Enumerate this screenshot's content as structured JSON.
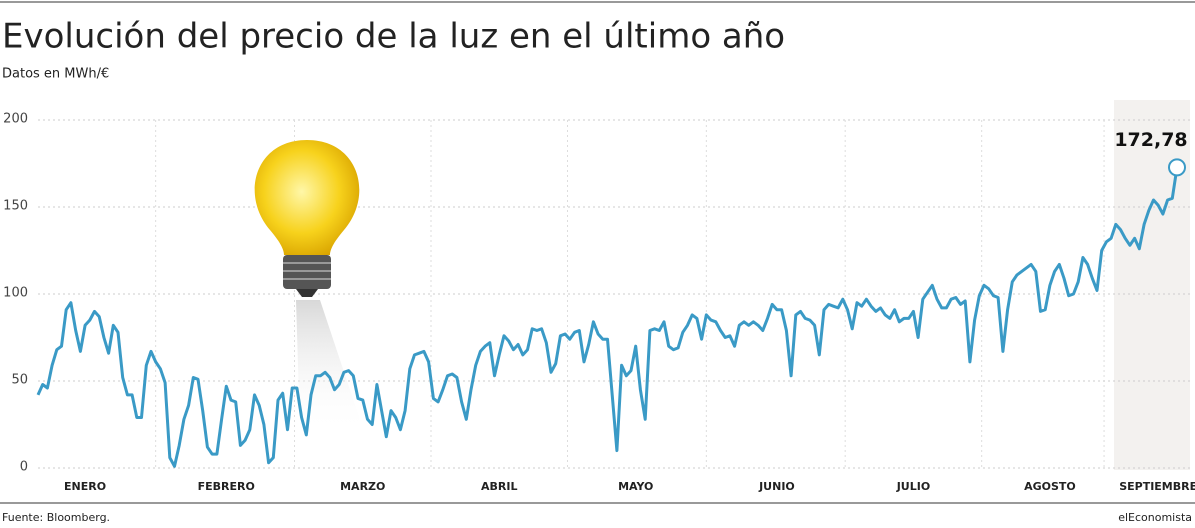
{
  "chart_data": {
    "type": "line",
    "title": "Evolución del precio de la luz en el último año",
    "subtitle": "Datos en MWh/€",
    "source": "Fuente: Bloomberg.",
    "brand": "elEconomista",
    "categories": [
      null,
      null,
      null,
      null,
      null,
      null,
      null,
      null,
      null,
      null,
      "ENERO",
      null,
      null,
      null,
      null,
      null,
      null,
      null,
      null,
      null,
      null,
      null,
      null,
      null,
      null,
      null,
      null,
      null,
      null,
      null,
      null,
      null,
      null,
      null,
      null,
      null,
      null,
      null,
      null,
      null,
      "FEBRERO",
      null,
      null,
      null,
      null,
      null,
      null,
      null,
      null,
      null,
      null,
      null,
      null,
      null,
      null,
      null,
      null,
      null,
      null,
      null,
      null,
      null,
      null,
      null,
      null,
      null,
      null,
      null,
      null,
      "MARZO",
      null,
      null,
      null,
      null,
      null,
      null,
      null,
      null,
      null,
      null,
      null,
      null,
      null,
      null,
      null,
      null,
      null,
      null,
      null,
      null,
      null,
      null,
      null,
      null,
      null,
      null,
      null,
      null,
      "ABRIL",
      null,
      null,
      null,
      null,
      null,
      null,
      null,
      null,
      null,
      null,
      null,
      null,
      null,
      null,
      null,
      null,
      null,
      null,
      null,
      null,
      null,
      null,
      null,
      null,
      null,
      null,
      null,
      null,
      "MAYO",
      null,
      null,
      null,
      null,
      null,
      null,
      null,
      null,
      null,
      null,
      null,
      null,
      null,
      null,
      null,
      null,
      null,
      null,
      null,
      null,
      null,
      null,
      null,
      null,
      null,
      null,
      null,
      null,
      null,
      "JUNIO",
      null,
      null,
      null,
      null,
      null,
      null,
      null,
      null,
      null,
      null,
      null,
      null,
      null,
      null,
      null,
      null,
      null,
      null,
      null,
      null,
      null,
      null,
      null,
      null,
      null,
      null,
      null,
      null,
      "JULIO",
      null,
      null,
      null,
      null,
      null,
      null,
      null,
      null,
      null,
      null,
      null,
      null,
      null,
      null,
      null,
      null,
      null,
      null,
      null,
      null,
      null,
      null,
      null,
      null,
      null,
      null,
      null,
      null,
      "AGOSTO",
      null,
      null,
      null,
      null,
      null,
      null,
      null,
      null,
      null,
      null,
      null,
      null,
      null,
      null,
      null,
      null,
      null,
      null,
      null,
      null,
      null,
      null,
      "SEPTIEMBRE",
      null,
      null,
      null,
      null
    ],
    "series": [
      {
        "color": "#3a9ac6",
        "values": [
          42,
          48,
          46,
          59,
          68,
          70,
          91,
          95,
          79,
          67,
          82,
          85,
          90,
          87,
          75,
          66,
          82,
          78,
          52,
          42,
          42,
          29,
          29,
          59,
          67,
          61,
          57,
          49,
          6,
          1,
          13,
          28,
          36,
          52,
          51,
          33,
          12,
          8,
          8,
          28,
          47,
          39,
          38,
          13,
          16,
          22,
          42,
          36,
          25,
          3,
          6,
          39,
          43,
          22,
          46,
          46,
          29,
          19,
          42,
          53,
          53,
          55,
          52,
          45,
          48,
          55,
          56,
          53,
          40,
          39,
          28,
          25,
          48,
          33,
          18,
          33,
          29,
          22,
          33,
          57,
          65,
          66,
          67,
          61,
          40,
          38,
          45,
          53,
          54,
          52,
          38,
          28,
          45,
          59,
          67,
          70,
          72,
          53,
          65,
          76,
          73,
          68,
          71,
          65,
          68,
          80,
          79,
          80,
          72,
          55,
          60,
          76,
          77,
          74,
          78,
          79,
          61,
          71,
          84,
          77,
          74,
          74,
          42,
          10,
          59,
          53,
          56,
          70,
          45,
          28,
          79,
          80,
          79,
          84,
          70,
          68,
          69,
          78,
          82,
          88,
          86,
          74,
          88,
          85,
          84,
          79,
          75,
          76,
          70,
          82,
          84,
          82,
          84,
          82,
          79,
          86,
          94,
          91,
          91,
          79,
          53,
          88,
          90,
          86,
          85,
          82,
          65,
          91,
          94,
          93,
          92,
          97,
          91,
          80,
          95,
          93,
          97,
          93,
          90,
          92,
          88,
          86,
          91,
          84,
          86,
          86,
          90,
          75,
          97,
          101,
          105,
          97,
          92,
          92,
          97,
          98,
          94,
          96,
          61,
          85,
          99,
          105,
          103,
          99,
          98,
          67,
          91,
          107,
          111,
          113,
          115,
          117,
          113,
          90,
          91,
          105,
          113,
          117,
          109,
          99,
          100,
          107,
          121,
          117,
          109,
          102,
          125,
          130,
          132,
          140,
          137,
          132,
          128,
          132,
          126,
          140,
          148,
          154,
          151,
          146,
          154,
          155,
          172.78
        ],
        "value_labels": [
          null,
          null,
          null,
          null,
          null,
          null,
          null,
          null,
          null,
          null,
          null,
          null,
          null,
          null,
          null,
          null,
          null,
          null,
          null,
          null,
          null,
          null,
          null,
          null,
          null,
          null,
          null,
          null,
          null,
          null,
          null,
          null,
          null,
          null,
          null,
          null,
          null,
          null,
          null,
          null,
          null,
          null,
          null,
          null,
          null,
          null,
          null,
          null,
          null,
          null,
          null,
          null,
          null,
          null,
          null,
          null,
          null,
          null,
          null,
          null,
          null,
          null,
          null,
          null,
          null,
          null,
          null,
          null,
          null,
          null,
          null,
          null,
          null,
          null,
          null,
          null,
          null,
          null,
          null,
          null,
          null,
          null,
          null,
          null,
          null,
          null,
          null,
          null,
          null,
          null,
          null,
          null,
          null,
          null,
          null,
          null,
          null,
          null,
          null,
          null,
          null,
          null,
          null,
          null,
          null,
          null,
          null,
          null,
          null,
          null,
          null,
          null,
          null,
          null,
          null,
          null,
          null,
          null,
          null,
          null,
          null,
          null,
          null,
          null,
          null,
          null,
          null,
          null,
          null,
          null,
          null,
          null,
          null,
          null,
          null,
          null,
          null,
          null,
          null,
          null,
          null,
          null,
          null,
          null,
          null,
          null,
          null,
          null,
          null,
          null,
          null,
          null,
          null,
          null,
          null,
          null,
          null,
          null,
          null,
          null,
          null,
          null,
          null,
          null,
          null,
          null,
          null,
          null,
          null,
          null,
          null,
          null,
          null,
          null,
          null,
          null,
          null,
          null,
          null,
          null,
          null,
          null,
          null,
          null,
          null,
          null,
          null,
          null,
          null,
          null,
          null,
          null,
          null,
          null,
          null,
          null,
          null,
          null,
          null,
          null,
          null,
          null,
          null,
          null,
          null,
          null,
          null,
          null,
          null,
          null,
          null,
          null,
          null,
          null,
          null,
          null,
          null,
          null,
          null,
          null,
          null,
          null,
          null,
          null,
          null,
          null,
          null,
          null,
          null,
          null,
          null,
          null,
          null,
          null,
          null,
          null,
          null,
          null,
          null,
          null,
          null,
          null,
          "172,78"
        ]
      }
    ],
    "ylim": [
      0,
      200
    ],
    "yticks": [
      0,
      50,
      100,
      150,
      200
    ],
    "grid": true
  }
}
